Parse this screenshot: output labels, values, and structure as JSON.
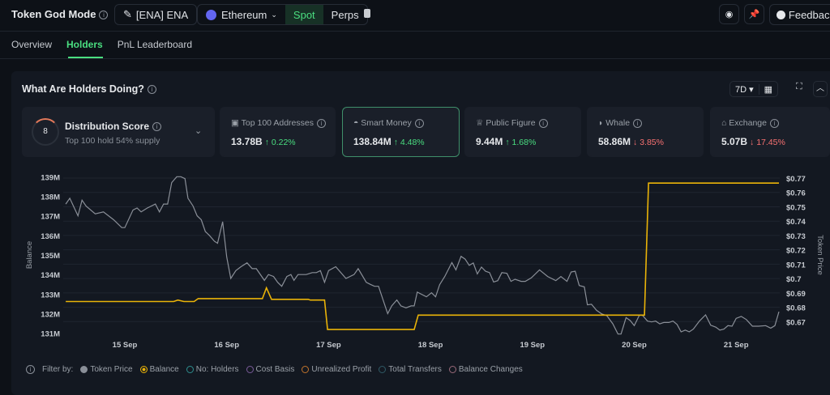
{
  "header": {
    "title": "Token God Mode",
    "token": "[ENA] ENA",
    "chain": "Ethereum",
    "modes": [
      "Spot",
      "Perps"
    ],
    "active_mode": "Spot",
    "feedback": "Feedback"
  },
  "tabs": [
    {
      "label": "Overview"
    },
    {
      "label": "Holders",
      "active": true
    },
    {
      "label": "PnL Leaderboard"
    }
  ],
  "panel": {
    "title": "What Are Holders Doing?",
    "range": "7D"
  },
  "distribution": {
    "score": "8",
    "title": "Distribution Score",
    "subtitle": "Top 100 hold 54% supply"
  },
  "cards": [
    {
      "label": "Top 100 Addresses",
      "value": "13.78B",
      "change": "↑ 0.22%",
      "dir": "up"
    },
    {
      "label": "Smart Money",
      "value": "138.84M",
      "change": "↑ 4.48%",
      "dir": "up",
      "selected": true
    },
    {
      "label": "Public Figure",
      "value": "9.44M",
      "change": "↑ 1.68%",
      "dir": "up"
    },
    {
      "label": "Whale",
      "value": "58.86M",
      "change": "↓ 3.85%",
      "dir": "down"
    },
    {
      "label": "Exchange",
      "value": "5.07B",
      "change": "↓ 17.45%",
      "dir": "down"
    }
  ],
  "filters": {
    "label": "Filter by:",
    "items": [
      {
        "label": "Token Price",
        "state": "filled",
        "color": "#8a8f98"
      },
      {
        "label": "Balance",
        "state": "selected",
        "color": "#eab308"
      },
      {
        "label": "No: Holders",
        "state": "off",
        "color": "#2e8f8f"
      },
      {
        "label": "Cost Basis",
        "state": "off",
        "color": "#7a5c9a"
      },
      {
        "label": "Unrealized Profit",
        "state": "off",
        "color": "#c2742c"
      },
      {
        "label": "Total Transfers",
        "state": "off",
        "color": "#2f5a66"
      },
      {
        "label": "Balance Changes",
        "state": "off",
        "color": "#9a6a7a"
      }
    ]
  },
  "colors": {
    "accent": "#4ade80",
    "gray_series": "#8a8f98",
    "yellow_series": "#eab308"
  },
  "chart_data": {
    "type": "line",
    "xlabel": "",
    "ylabel": "Balance",
    "y2label": "Token Price",
    "x_ticks": [
      "15 Sep",
      "16 Sep",
      "17 Sep",
      "18 Sep",
      "19 Sep",
      "20 Sep",
      "21 Sep"
    ],
    "y_ticks": [
      "139M",
      "138M",
      "137M",
      "136M",
      "135M",
      "134M",
      "133M",
      "132M",
      "131M"
    ],
    "y2_ticks": [
      "$0.77",
      "$0.76",
      "$0.75",
      "$0.74",
      "$0.73",
      "$0.72",
      "$0.71",
      "$0.7",
      "$0.69",
      "$0.68",
      "$0.67"
    ],
    "ylim": [
      131,
      139
    ],
    "y2lim": [
      0.67,
      0.77
    ],
    "x_unit": "day of September",
    "series": [
      {
        "axis": "left",
        "color": "#8a8f98",
        "points": [
          [
            14.42,
            137.6
          ],
          [
            14.46,
            137.9
          ],
          [
            14.54,
            137.0
          ],
          [
            14.58,
            137.8
          ],
          [
            14.62,
            137.5
          ],
          [
            14.71,
            137.1
          ],
          [
            14.79,
            137.2
          ],
          [
            14.89,
            136.8
          ],
          [
            14.97,
            136.4
          ],
          [
            15.0,
            136.4
          ],
          [
            15.08,
            137.3
          ],
          [
            15.12,
            137.4
          ],
          [
            15.16,
            137.2
          ],
          [
            15.22,
            137.4
          ],
          [
            15.3,
            137.6
          ],
          [
            15.34,
            137.2
          ],
          [
            15.38,
            137.6
          ],
          [
            15.42,
            137.6
          ],
          [
            15.46,
            138.7
          ],
          [
            15.51,
            139.0
          ],
          [
            15.55,
            139.0
          ],
          [
            15.59,
            138.9
          ],
          [
            15.62,
            137.9
          ],
          [
            15.67,
            137.5
          ],
          [
            15.71,
            137.0
          ],
          [
            15.75,
            136.8
          ],
          [
            15.79,
            136.2
          ],
          [
            15.83,
            136.0
          ],
          [
            15.88,
            135.7
          ],
          [
            15.91,
            135.6
          ],
          [
            15.96,
            136.7
          ],
          [
            16.0,
            134.9
          ],
          [
            16.04,
            133.8
          ],
          [
            16.09,
            134.2
          ],
          [
            16.14,
            134.4
          ],
          [
            16.2,
            134.6
          ],
          [
            16.25,
            134.3
          ],
          [
            16.29,
            134.3
          ],
          [
            16.37,
            133.7
          ],
          [
            16.41,
            134.0
          ],
          [
            16.46,
            133.9
          ],
          [
            16.5,
            133.6
          ],
          [
            16.54,
            133.4
          ],
          [
            16.59,
            133.9
          ],
          [
            16.63,
            134.0
          ],
          [
            16.66,
            133.7
          ],
          [
            16.7,
            134.0
          ],
          [
            16.78,
            134.0
          ],
          [
            16.84,
            134.1
          ],
          [
            16.88,
            134.1
          ],
          [
            16.92,
            134.2
          ],
          [
            16.96,
            133.6
          ],
          [
            17.0,
            134.2
          ],
          [
            17.07,
            134.4
          ],
          [
            17.17,
            133.8
          ],
          [
            17.25,
            134.0
          ],
          [
            17.29,
            134.3
          ],
          [
            17.37,
            133.6
          ],
          [
            17.41,
            133.5
          ],
          [
            17.45,
            133.4
          ],
          [
            17.49,
            133.4
          ],
          [
            17.58,
            132.0
          ],
          [
            17.62,
            132.4
          ],
          [
            17.67,
            132.7
          ],
          [
            17.71,
            132.4
          ],
          [
            17.76,
            132.3
          ],
          [
            17.81,
            132.4
          ],
          [
            17.84,
            132.4
          ],
          [
            17.87,
            133.1
          ],
          [
            17.96,
            132.86
          ],
          [
            18.01,
            133.07
          ],
          [
            18.05,
            132.86
          ],
          [
            18.09,
            133.48
          ],
          [
            18.14,
            133.9
          ],
          [
            18.21,
            134.61
          ],
          [
            18.25,
            134.24
          ],
          [
            18.3,
            134.93
          ],
          [
            18.34,
            134.79
          ],
          [
            18.38,
            134.47
          ],
          [
            18.42,
            134.59
          ],
          [
            18.46,
            134.03
          ],
          [
            18.5,
            134.38
          ],
          [
            18.54,
            134.17
          ],
          [
            18.58,
            134.1
          ],
          [
            18.62,
            133.62
          ],
          [
            18.66,
            133.69
          ],
          [
            18.7,
            134.1
          ],
          [
            18.75,
            134.06
          ],
          [
            18.79,
            133.65
          ],
          [
            18.83,
            133.76
          ],
          [
            18.89,
            133.65
          ],
          [
            18.93,
            133.65
          ],
          [
            18.99,
            133.83
          ],
          [
            19.07,
            134.24
          ],
          [
            19.15,
            133.9
          ],
          [
            19.23,
            133.69
          ],
          [
            19.28,
            133.9
          ],
          [
            19.34,
            133.65
          ],
          [
            19.38,
            134.13
          ],
          [
            19.42,
            134.17
          ],
          [
            19.46,
            133.44
          ],
          [
            19.51,
            133.37
          ],
          [
            19.54,
            132.45
          ],
          [
            19.58,
            132.48
          ],
          [
            19.63,
            132.17
          ],
          [
            19.68,
            131.99
          ],
          [
            19.73,
            131.9
          ],
          [
            19.79,
            131.48
          ],
          [
            19.84,
            130.96
          ],
          [
            19.87,
            130.96
          ],
          [
            19.92,
            131.8
          ],
          [
            19.96,
            131.65
          ],
          [
            20.0,
            131.39
          ],
          [
            20.05,
            131.92
          ],
          [
            20.08,
            131.92
          ],
          [
            20.13,
            131.62
          ],
          [
            20.17,
            131.58
          ],
          [
            20.21,
            131.62
          ],
          [
            20.25,
            131.48
          ],
          [
            20.29,
            131.55
          ],
          [
            20.34,
            131.55
          ],
          [
            20.38,
            131.62
          ],
          [
            20.42,
            131.45
          ],
          [
            20.46,
            131.07
          ],
          [
            20.5,
            131.16
          ],
          [
            20.54,
            131.07
          ],
          [
            20.58,
            131.21
          ],
          [
            20.64,
            131.62
          ],
          [
            20.7,
            131.94
          ],
          [
            20.75,
            131.41
          ],
          [
            20.8,
            131.31
          ],
          [
            20.84,
            131.16
          ],
          [
            20.88,
            131.21
          ],
          [
            20.92,
            131.39
          ],
          [
            20.96,
            131.36
          ],
          [
            21.0,
            131.76
          ],
          [
            21.05,
            131.86
          ],
          [
            21.1,
            131.7
          ],
          [
            21.16,
            131.36
          ],
          [
            21.22,
            131.36
          ],
          [
            21.29,
            131.39
          ],
          [
            21.34,
            131.26
          ],
          [
            21.38,
            131.39
          ],
          [
            21.42,
            132.1
          ]
        ]
      },
      {
        "axis": "right",
        "color": "#eab308",
        "points": [
          [
            14.42,
            0.684
          ],
          [
            15.48,
            0.684
          ],
          [
            15.52,
            0.685
          ],
          [
            15.58,
            0.684
          ],
          [
            15.68,
            0.684
          ],
          [
            15.72,
            0.686
          ],
          [
            16.35,
            0.686
          ],
          [
            16.39,
            0.6935
          ],
          [
            16.44,
            0.6855
          ],
          [
            16.8,
            0.6855
          ],
          [
            16.82,
            0.685
          ],
          [
            16.96,
            0.685
          ],
          [
            16.99,
            0.6645
          ],
          [
            17.84,
            0.6645
          ],
          [
            17.88,
            0.6745
          ],
          [
            20.1,
            0.6745
          ],
          [
            20.14,
            0.7665
          ],
          [
            21.42,
            0.7665
          ]
        ]
      }
    ]
  }
}
